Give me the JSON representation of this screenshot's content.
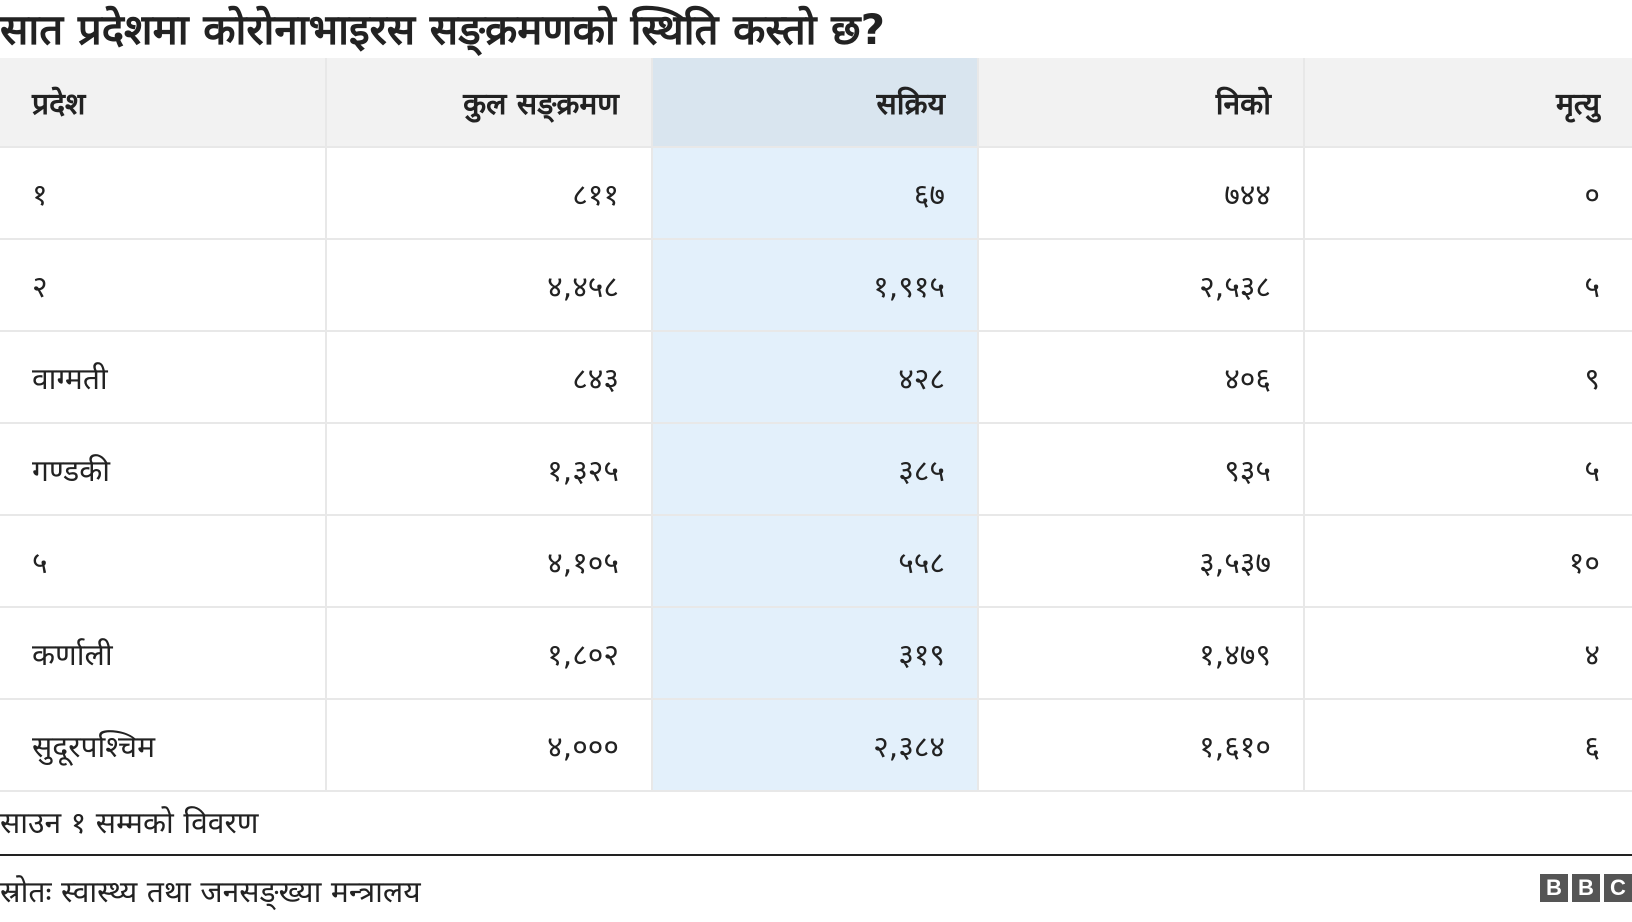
{
  "title": "सात प्रदेशमा कोरोनाभाइरस सङ्क्रमणको स्थिति कस्तो छ?",
  "table": {
    "headers": [
      "प्रदेश",
      "कुल सङ्क्रमण",
      "सक्रिय",
      "निको",
      "मृत्यु"
    ],
    "highlighted_column": "सक्रिय",
    "rows": [
      [
        "१",
        "८११",
        "६७",
        "७४४",
        "०"
      ],
      [
        "२",
        "४,४५८",
        "१,९१५",
        "२,५३८",
        "५"
      ],
      [
        "वाग्मती",
        "८४३",
        "४२८",
        "४०६",
        "९"
      ],
      [
        "गण्डकी",
        "१,३२५",
        "३८५",
        "९३५",
        "५"
      ],
      [
        "५",
        "४,१०५",
        "५५८",
        "३,५३७",
        "१०"
      ],
      [
        "कर्णाली",
        "१,८०२",
        "३१९",
        "१,४७९",
        "४"
      ],
      [
        "सुदूरपश्चिम",
        "४,०००",
        "२,३८४",
        "१,६१०",
        "६"
      ]
    ]
  },
  "note": "साउन १ सम्मको विवरण",
  "source": "स्रोतः स्वास्थ्य तथा जनसङ्ख्या मन्त्रालय",
  "logo": {
    "letters": [
      "B",
      "B",
      "C"
    ]
  },
  "colors": {
    "header_bg": "#f2f2f2",
    "highlight_header_bg": "#d9e5ef",
    "highlight_cell_bg": "#e3f0fb",
    "text": "#222222",
    "logo_bg": "#555555"
  }
}
